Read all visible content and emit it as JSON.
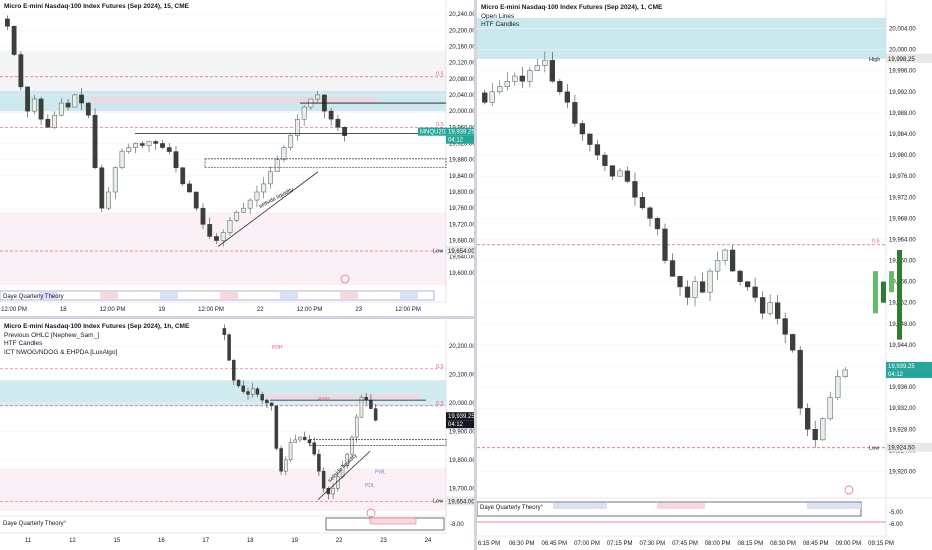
{
  "colors": {
    "up": "#4f5b4f",
    "down": "#3a3f3a",
    "fvg_cyan": "#b2dfe8",
    "fvg_pink": "#f3d5e0",
    "bg_pink": "#fbf0f6",
    "dash_red": "#e8607a",
    "green_tag": "#26a69a",
    "axis_text": "#131722",
    "grid": "#f0f3fa"
  },
  "chart_data": [
    {
      "type": "candlestick",
      "title": "Micro E-mini Nasdaq-100 Index Futures (Sep 2024), 15, CME",
      "indicators": [],
      "y_ticks": [
        "20,240.00",
        "20,200.00",
        "20,160.00",
        "20,120.00",
        "20,080.00",
        "20,040.00",
        "20,000.00",
        "19,960.00",
        "19,920.00",
        "19,880.00",
        "19,840.00",
        "19,800.00",
        "19,760.00",
        "19,720.00",
        "19,680.00",
        "19,640.00",
        "19,600.00"
      ],
      "ylim": [
        19570,
        20260
      ],
      "x_ticks": [
        "12:00 PM",
        "18",
        "12:00 PM",
        "19",
        "12:00 PM",
        "22",
        "12:00 PM",
        "23",
        "12:00 PM"
      ],
      "labels": {
        "level_05_a": "0.5",
        "level_05_b": "0.5",
        "low_label": "Low",
        "low_value": "19,654.00",
        "symbol_tag": "MNQU2024",
        "price_tag": "19,939.25",
        "countdown": "04:12",
        "liquidity": "sellside liquidity",
        "study": "Daye Quarterly Theory"
      },
      "series": [
        {
          "name": "MNQU2024",
          "close": [
            20210,
            20140,
            20060,
            20000,
            20030,
            19980,
            19960,
            19990,
            20020,
            20010,
            20040,
            20020,
            19990,
            19860,
            19760,
            19800,
            19860,
            19900,
            19910,
            19920,
            19915,
            19925,
            19920,
            19910,
            19900,
            19860,
            19820,
            19800,
            19760,
            19720,
            19690,
            19680,
            19700,
            19730,
            19750,
            19760,
            19780,
            19800,
            19820,
            19850,
            19880,
            19910,
            19940,
            19980,
            20010,
            20030,
            20040,
            20000,
            19980,
            19960,
            19939.25
          ]
        }
      ]
    },
    {
      "type": "candlestick",
      "title": "Micro E-mini Nasdaq-100 Index Futures (Sep 2024), 1h, CME",
      "indicators": [
        "Previous OHLC [Nephew_Sam_]",
        "HTF Candles",
        "ICT NWOG/NDOG & EHPDA [LuxAlgo]"
      ],
      "y_ticks": [
        "20,200.00",
        "20,100.00",
        "20,000.00",
        "19,900.00",
        "19,800.00",
        "19,700.00"
      ],
      "ylim": [
        19620,
        20260
      ],
      "x_ticks": [
        "11",
        "12",
        "15",
        "16",
        "17",
        "18",
        "19",
        "22",
        "23",
        "24"
      ],
      "labels": {
        "level_05_a": "0.5",
        "level_05_b": "0.5",
        "low_label": "Low",
        "low_value": "19,654.00",
        "price_tag": "19,939.25",
        "countdown": "04:12",
        "liquidity": "sellside liquidity",
        "pdh": "PDH",
        "pwh": "PWH",
        "pwl": "PWL",
        "pdl": "PDL",
        "study": "Daye Quarterly Theory°",
        "study_value": "-8.00"
      },
      "series": [
        {
          "name": "MNQU2024",
          "close": [
            20240,
            20150,
            20080,
            20060,
            20040,
            20030,
            20050,
            20030,
            20010,
            20000,
            19990,
            19840,
            19760,
            19800,
            19860,
            19870,
            19880,
            19870,
            19860,
            19820,
            19760,
            19700,
            19680,
            19700,
            19740,
            19780,
            19820,
            19880,
            19950,
            20020,
            20010,
            19980,
            19939.25
          ]
        }
      ]
    },
    {
      "type": "candlestick",
      "title": "Micro E-mini Nasdaq-100 Index Futures (Sep 2024), 1, CME",
      "indicators": [
        "Open Lines",
        "HTF Candles"
      ],
      "y_ticks": [
        "20,004.00",
        "20,000.00",
        "19,996.00",
        "19,992.00",
        "19,988.00",
        "19,984.00",
        "19,980.00",
        "19,976.00",
        "19,972.00",
        "19,968.00",
        "19,964.00",
        "19,960.00",
        "19,956.00",
        "19,952.00",
        "19,948.00",
        "19,944.00",
        "19,940.00",
        "19,936.00",
        "19,932.00",
        "19,928.00",
        "19,924.00",
        "19,920.00"
      ],
      "ylim": [
        19918,
        20006
      ],
      "x_ticks": [
        "6:15 PM",
        "06:30 PM",
        "06:45 PM",
        "07:00 PM",
        "07:15 PM",
        "07:30 PM",
        "07:45 PM",
        "08:00 PM",
        "08:15 PM",
        "08:30 PM",
        "08:45 PM",
        "09:00 PM",
        "09:15 PM"
      ],
      "labels": {
        "high_label": "High",
        "high_value": "19,998.25",
        "level_05": "0.5",
        "low_label": "Low",
        "low_value": "19,924.50",
        "price_tag": "19,939.25",
        "countdown": "04:12",
        "study": "Daye Quarterly Theory°",
        "study_a": "-5.00",
        "study_b": "-6.00"
      },
      "series": [
        {
          "name": "MNQU2024",
          "close": [
            19990,
            19992,
            19993,
            19994,
            19995,
            19994,
            19996,
            19997,
            19998,
            19994,
            19992,
            19990,
            19986,
            19984,
            19982,
            19980,
            19978,
            19976,
            19977,
            19975,
            19972,
            19970,
            19968,
            19966,
            19960,
            19957,
            19955,
            19953,
            19956,
            19954,
            19958,
            19960,
            19962,
            19958,
            19956,
            19955,
            19953,
            19950,
            19952,
            19949,
            19946,
            19943,
            19932,
            19928,
            19926,
            19930,
            19934,
            19938,
            19939.25
          ]
        }
      ]
    }
  ]
}
